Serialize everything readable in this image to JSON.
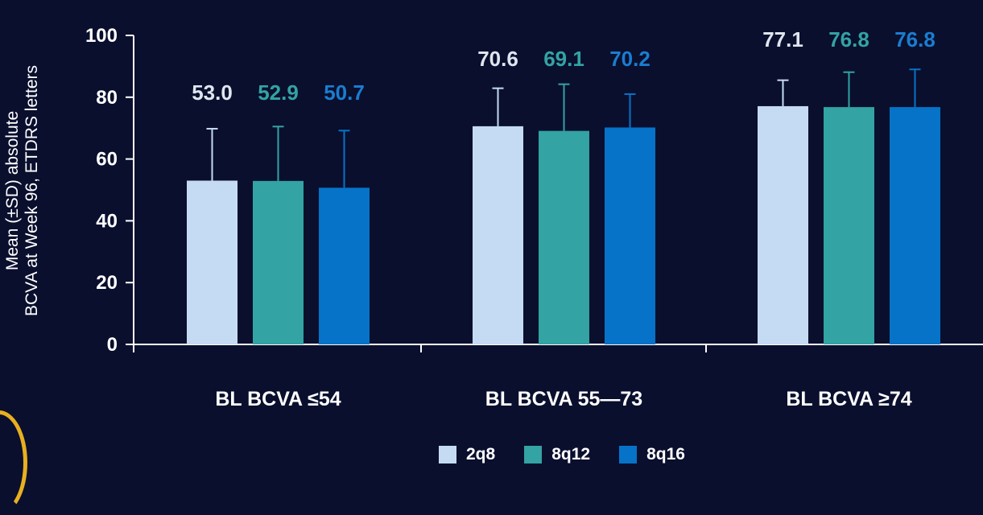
{
  "chart_data": {
    "type": "bar",
    "categories": [
      "BL BCVA ≤54",
      "BL BCVA 55—73",
      "BL BCVA ≥74"
    ],
    "series": [
      {
        "name": "2q8",
        "color": "#c5dbf3",
        "values": [
          53.0,
          70.6,
          77.1
        ],
        "sd": [
          16.8,
          12.3,
          8.4
        ],
        "labels": [
          "53.0",
          "70.6",
          "77.1"
        ],
        "label_color": "#dfe6ef"
      },
      {
        "name": "8q12",
        "color": "#33a3a3",
        "values": [
          52.9,
          69.1,
          76.8
        ],
        "sd": [
          17.6,
          15.1,
          11.3
        ],
        "labels": [
          "52.9",
          "69.1",
          "76.8"
        ],
        "label_color": "#33a3a3"
      },
      {
        "name": "8q16",
        "color": "#0673c8",
        "values": [
          50.7,
          70.2,
          76.8
        ],
        "sd": [
          18.5,
          10.8,
          12.2
        ],
        "labels": [
          "50.7",
          "70.2",
          "76.8"
        ],
        "label_color": "#1a7dd0"
      }
    ],
    "ylabel_lines": [
      "Mean (±SD) absolute",
      "BCVA at Week 96, ETDRS letters"
    ],
    "ylim": [
      0,
      100
    ],
    "yticks": [
      "0",
      "20",
      "40",
      "60",
      "80",
      "100"
    ],
    "grid": false,
    "legend_position": "bottom"
  },
  "colors": {
    "background": "#0a0f2e",
    "axis": "#ffffff",
    "accent_arc": "#e8b020"
  }
}
